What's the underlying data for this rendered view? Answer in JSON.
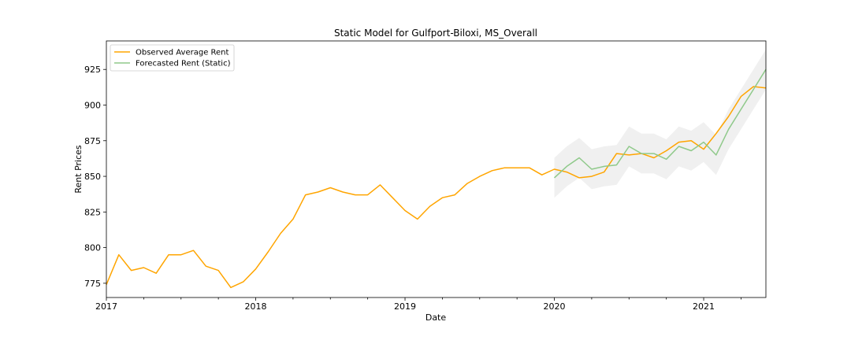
{
  "chart_data": {
    "type": "line",
    "title": "Static Model for Gulfport-Biloxi, MS_Overall",
    "xlabel": "Date",
    "ylabel": "Rent Prices",
    "xlim": [
      "2017-01",
      "2021-06"
    ],
    "ylim": [
      765,
      945
    ],
    "x_ticks": [
      {
        "date": "2017-01",
        "label": "2017"
      },
      {
        "date": "2018-01",
        "label": "2018"
      },
      {
        "date": "2019-01",
        "label": "2019"
      },
      {
        "date": "2020-01",
        "label": "2020"
      },
      {
        "date": "2021-01",
        "label": "2021"
      }
    ],
    "y_ticks": [
      775,
      800,
      825,
      850,
      875,
      900,
      925
    ],
    "legend": {
      "position": "top-left",
      "entries": [
        "Observed Average Rent",
        "Forecasted Rent (Static)"
      ]
    },
    "colors": {
      "observed": "#ffa500",
      "forecast": "#8fc98a",
      "band": "#e6e6e6"
    },
    "series": [
      {
        "name": "Observed Average Rent",
        "x": [
          "2017-01",
          "2017-02",
          "2017-03",
          "2017-04",
          "2017-05",
          "2017-06",
          "2017-07",
          "2017-08",
          "2017-09",
          "2017-10",
          "2017-11",
          "2017-12",
          "2018-01",
          "2018-02",
          "2018-03",
          "2018-04",
          "2018-05",
          "2018-06",
          "2018-07",
          "2018-08",
          "2018-09",
          "2018-10",
          "2018-11",
          "2018-12",
          "2019-01",
          "2019-02",
          "2019-03",
          "2019-04",
          "2019-05",
          "2019-06",
          "2019-07",
          "2019-08",
          "2019-09",
          "2019-10",
          "2019-11",
          "2019-12",
          "2020-01",
          "2020-02",
          "2020-03",
          "2020-04",
          "2020-05",
          "2020-06",
          "2020-07",
          "2020-08",
          "2020-09",
          "2020-10",
          "2020-11",
          "2020-12",
          "2021-01",
          "2021-02",
          "2021-03",
          "2021-04",
          "2021-05",
          "2021-06"
        ],
        "values": [
          774,
          795,
          784,
          786,
          782,
          795,
          795,
          798,
          787,
          784,
          772,
          776,
          785,
          797,
          810,
          820,
          837,
          839,
          842,
          839,
          837,
          837,
          844,
          835,
          826,
          820,
          829,
          835,
          837,
          845,
          850,
          854,
          856,
          856,
          856,
          851,
          855,
          853,
          849,
          850,
          853,
          866,
          865,
          866,
          863,
          868,
          874,
          875,
          869,
          880,
          892,
          906,
          913,
          912
        ]
      },
      {
        "name": "Forecasted Rent (Static)",
        "x": [
          "2020-01",
          "2020-02",
          "2020-03",
          "2020-04",
          "2020-05",
          "2020-06",
          "2020-07",
          "2020-08",
          "2020-09",
          "2020-10",
          "2020-11",
          "2020-12",
          "2021-01",
          "2021-02",
          "2021-03",
          "2021-04",
          "2021-05",
          "2021-06"
        ],
        "values": [
          849,
          857,
          863,
          855,
          857,
          858,
          871,
          866,
          866,
          862,
          871,
          868,
          874,
          865,
          883,
          897,
          911,
          925
        ],
        "lower": [
          835,
          843,
          849,
          841,
          843,
          844,
          857,
          852,
          852,
          848,
          857,
          854,
          860,
          851,
          869,
          883,
          897,
          911
        ],
        "upper": [
          863,
          871,
          877,
          869,
          871,
          872,
          885,
          880,
          880,
          876,
          885,
          882,
          888,
          879,
          897,
          911,
          925,
          939
        ]
      }
    ]
  }
}
